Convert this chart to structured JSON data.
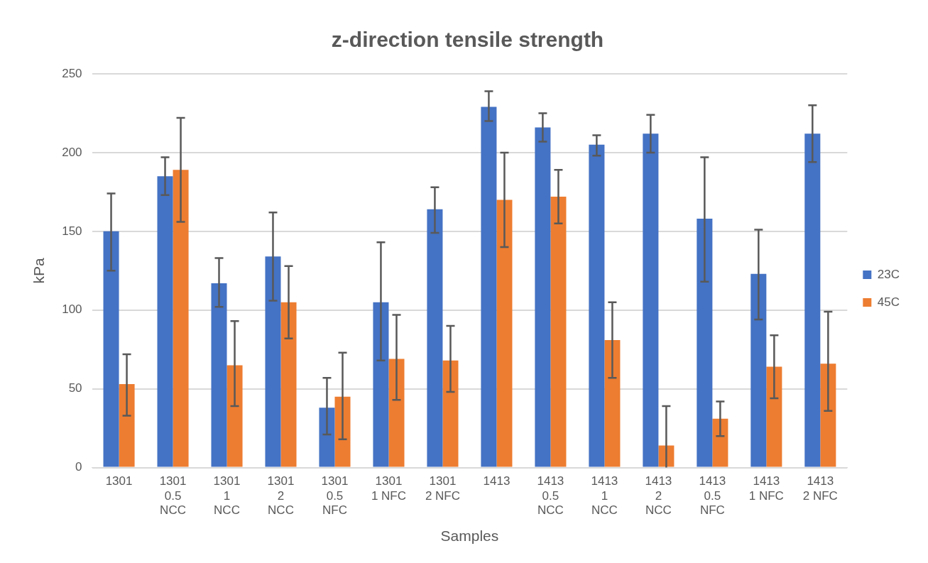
{
  "chart_data": {
    "type": "bar",
    "title": "z-direction tensile strength",
    "xlabel": "Samples",
    "ylabel": "kPa",
    "categories": [
      "1301",
      "1301 0.5 NCC",
      "1301 1 NCC",
      "1301 2 NCC",
      "1301 0.5 NFC",
      "1301 1 NFC",
      "1301 2 NFC",
      "1413",
      "1413 0.5 NCC",
      "1413 1 NCC",
      "1413 2 NCC",
      "1413 0.5 NFC",
      "1413 1 NFC",
      "1413 2 NFC"
    ],
    "series": [
      {
        "name": "23C",
        "color": "#4472c4",
        "values": [
          150,
          185,
          117,
          134,
          38,
          105,
          164,
          229,
          216,
          205,
          212,
          158,
          123,
          212
        ],
        "errors": [
          [
            125,
            174
          ],
          [
            173,
            197
          ],
          [
            102,
            133
          ],
          [
            106,
            162
          ],
          [
            21,
            57
          ],
          [
            68,
            143
          ],
          [
            149,
            178
          ],
          [
            220,
            239
          ],
          [
            207,
            225
          ],
          [
            198,
            211
          ],
          [
            200,
            224
          ],
          [
            118,
            197
          ],
          [
            94,
            151
          ],
          [
            194,
            230
          ]
        ]
      },
      {
        "name": "45C",
        "color": "#ed7d31",
        "values": [
          53,
          189,
          65,
          105,
          45,
          69,
          68,
          170,
          172,
          81,
          14,
          31,
          64,
          66
        ],
        "errors": [
          [
            33,
            72
          ],
          [
            156,
            222
          ],
          [
            39,
            93
          ],
          [
            82,
            128
          ],
          [
            18,
            73
          ],
          [
            43,
            97
          ],
          [
            48,
            90
          ],
          [
            140,
            200
          ],
          [
            155,
            189
          ],
          [
            57,
            105
          ],
          [
            0,
            39
          ],
          [
            20,
            42
          ],
          [
            44,
            84
          ],
          [
            36,
            99
          ]
        ]
      }
    ],
    "ylim": [
      0,
      250
    ],
    "yticks": [
      0,
      50,
      100,
      150,
      200,
      250
    ],
    "grid": "y",
    "legend": "right"
  }
}
